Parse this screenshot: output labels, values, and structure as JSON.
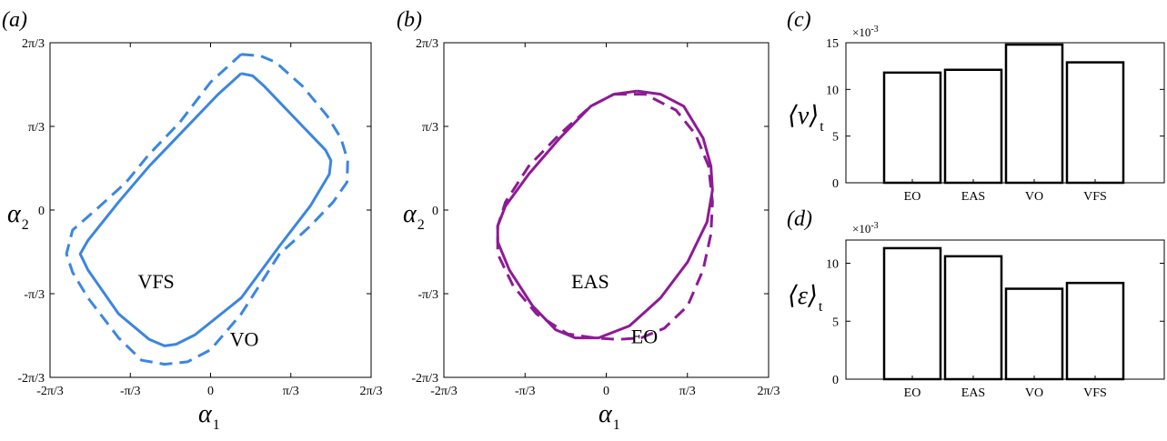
{
  "chart_data": [
    {
      "id": "a",
      "type": "line",
      "panel_label": "(a)",
      "xlabel": "α",
      "xlabel_sub": "1",
      "ylabel": "α",
      "ylabel_sub": "2",
      "xlim": [
        -2.0944,
        2.0944
      ],
      "ylim": [
        -2.0944,
        2.0944
      ],
      "xticks": [
        {
          "value": -2.0944,
          "label": "-2π/3"
        },
        {
          "value": -1.0472,
          "label": "-π/3"
        },
        {
          "value": 0,
          "label": "0"
        },
        {
          "value": 1.0472,
          "label": "π/3"
        },
        {
          "value": 2.0944,
          "label": "2π/3"
        }
      ],
      "yticks": [
        {
          "value": 2.0944,
          "label": "2π/3"
        },
        {
          "value": 1.0472,
          "label": "π/3"
        },
        {
          "value": 0,
          "label": "0"
        },
        {
          "value": -1.0472,
          "label": "-π/3"
        },
        {
          "value": -2.0944,
          "label": "-2π/3"
        }
      ],
      "series": [
        {
          "name": "VFS",
          "color": "#3b86e0",
          "style": "solid",
          "x": [
            0.4,
            0.55,
            0.7,
            1.1,
            1.5,
            1.57,
            1.55,
            1.3,
            0.9,
            0.4,
            -0.2,
            -0.45,
            -0.6,
            -0.8,
            -1.2,
            -1.6,
            -1.7,
            -1.6,
            -1.2,
            -0.8,
            -0.3,
            0.1,
            0.4
          ],
          "y": [
            1.71,
            1.68,
            1.55,
            1.15,
            0.75,
            0.62,
            0.45,
            0.05,
            -0.45,
            -1.1,
            -1.56,
            -1.68,
            -1.7,
            -1.62,
            -1.3,
            -0.75,
            -0.55,
            -0.38,
            0.1,
            0.55,
            1.05,
            1.45,
            1.71
          ]
        },
        {
          "name": "VO",
          "color": "#3b86e0",
          "style": "dashed",
          "x": [
            0.4,
            0.65,
            0.85,
            1.2,
            1.52,
            1.7,
            1.79,
            1.78,
            1.6,
            1.3,
            0.9,
            0.4,
            0.0,
            -0.3,
            -0.6,
            -0.9,
            -1.2,
            -1.6,
            -1.8,
            -1.88,
            -1.8,
            -1.5,
            -1.1,
            -0.8,
            -0.4,
            0.0,
            0.4
          ],
          "y": [
            1.95,
            1.93,
            1.85,
            1.55,
            1.18,
            0.9,
            0.62,
            0.35,
            0.1,
            -0.2,
            -0.55,
            -1.3,
            -1.75,
            -1.9,
            -1.93,
            -1.88,
            -1.6,
            -1.1,
            -0.78,
            -0.55,
            -0.25,
            0.0,
            0.35,
            0.7,
            1.1,
            1.6,
            1.95
          ]
        }
      ],
      "annotations": [
        {
          "text": "VFS",
          "x": -0.95,
          "y": -0.98
        },
        {
          "text": "VO",
          "x": 0.25,
          "y": -1.7
        }
      ]
    },
    {
      "id": "b",
      "type": "line",
      "panel_label": "(b)",
      "xlabel": "α",
      "xlabel_sub": "1",
      "ylabel": "α",
      "ylabel_sub": "2",
      "xlim": [
        -2.0944,
        2.0944
      ],
      "ylim": [
        -2.0944,
        2.0944
      ],
      "xticks": [
        {
          "value": -2.0944,
          "label": "-2π/3"
        },
        {
          "value": -1.0472,
          "label": "-π/3"
        },
        {
          "value": 0,
          "label": "0"
        },
        {
          "value": 1.0472,
          "label": "π/3"
        },
        {
          "value": 2.0944,
          "label": "2π/3"
        }
      ],
      "yticks": [
        {
          "value": 2.0944,
          "label": "2π/3"
        },
        {
          "value": 1.0472,
          "label": "π/3"
        },
        {
          "value": 0,
          "label": "0"
        },
        {
          "value": -1.0472,
          "label": "-π/3"
        },
        {
          "value": -2.0944,
          "label": "-2π/3"
        }
      ],
      "series": [
        {
          "name": "EAS",
          "color": "#8e1a96",
          "style": "solid",
          "x": [
            0.4,
            0.7,
            1.0,
            1.25,
            1.35,
            1.37,
            1.3,
            1.05,
            0.7,
            0.3,
            -0.1,
            -0.4,
            -0.65,
            -0.95,
            -1.25,
            -1.4,
            -1.4,
            -1.3,
            -1.0,
            -0.6,
            -0.2,
            0.1,
            0.4
          ],
          "y": [
            1.49,
            1.45,
            1.3,
            0.9,
            0.55,
            0.25,
            -0.15,
            -0.65,
            -1.1,
            -1.45,
            -1.6,
            -1.6,
            -1.5,
            -1.2,
            -0.75,
            -0.4,
            -0.2,
            0.05,
            0.45,
            0.9,
            1.3,
            1.45,
            1.49
          ]
        },
        {
          "name": "EO",
          "color": "#8e1a96",
          "style": "dashed",
          "x": [
            0.1,
            0.5,
            0.9,
            1.15,
            1.32,
            1.37,
            1.35,
            1.25,
            1.05,
            0.75,
            0.45,
            0.15,
            -0.15,
            -0.5,
            -0.9,
            -1.2,
            -1.4,
            -1.4,
            -1.3,
            -1.0,
            -0.6,
            -0.2,
            0.1
          ],
          "y": [
            1.45,
            1.45,
            1.25,
            0.95,
            0.55,
            0.1,
            -0.3,
            -0.75,
            -1.2,
            -1.48,
            -1.6,
            -1.62,
            -1.6,
            -1.55,
            -1.3,
            -0.95,
            -0.55,
            -0.2,
            0.1,
            0.55,
            0.95,
            1.3,
            1.45
          ]
        }
      ],
      "annotations": [
        {
          "text": "EAS",
          "x": -0.45,
          "y": -0.98
        },
        {
          "text": "EO",
          "x": 0.32,
          "y": -1.67
        }
      ]
    },
    {
      "id": "c",
      "type": "bar",
      "panel_label": "(c)",
      "ylabel": "⟨v⟩",
      "ylabel_sub": "t",
      "multiplier": "×10",
      "multiplier_exp": "-3",
      "categories": [
        "EO",
        "EAS",
        "VO",
        "VFS"
      ],
      "values": [
        11.8,
        12.1,
        14.8,
        12.9
      ],
      "ylim": [
        0,
        15
      ],
      "yticks": [
        0,
        5,
        10,
        15
      ]
    },
    {
      "id": "d",
      "type": "bar",
      "panel_label": "(d)",
      "ylabel": "⟨ε⟩",
      "ylabel_sub": "t",
      "multiplier": "×10",
      "multiplier_exp": "-3",
      "categories": [
        "EO",
        "EAS",
        "VO",
        "VFS"
      ],
      "values": [
        11.3,
        10.6,
        7.8,
        8.3
      ],
      "ylim": [
        0,
        12
      ],
      "yticks": [
        0,
        5,
        10
      ]
    }
  ]
}
